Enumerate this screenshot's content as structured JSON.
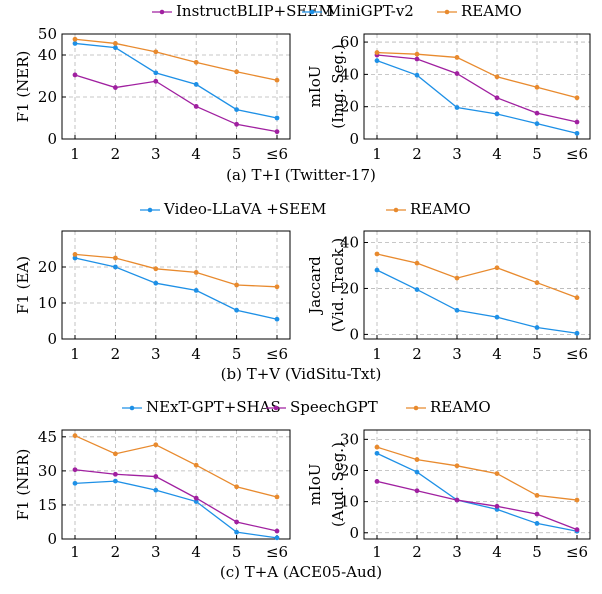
{
  "colors": {
    "purple": "#a020a0",
    "blue": "#1e90e6",
    "orange": "#e88a2e",
    "grid": "#b5b5b5"
  },
  "rows": [
    {
      "caption": "(a) T+I (Twitter-17)",
      "legend": [
        {
          "name": "InstructBLIP+SEEM",
          "color": "#a020a0"
        },
        {
          "name": "MiniGPT-v2",
          "color": "#1e90e6"
        },
        {
          "name": "REAMO",
          "color": "#e88a2e"
        }
      ]
    },
    {
      "caption": "(b) T+V (VidSitu-Txt)",
      "legend": [
        {
          "name": "Video-LLaVA +SEEM",
          "color": "#1e90e6"
        },
        {
          "name": "REAMO",
          "color": "#e88a2e"
        }
      ]
    },
    {
      "caption": "(c) T+A (ACE05-Aud)",
      "legend": [
        {
          "name": "NExT-GPT+SHAS",
          "color": "#1e90e6"
        },
        {
          "name": "SpeechGPT",
          "color": "#a020a0"
        },
        {
          "name": "REAMO",
          "color": "#e88a2e"
        }
      ]
    }
  ],
  "chart_data": [
    {
      "type": "line",
      "ylabel": [
        "F1 (NER)"
      ],
      "x": [
        "1",
        "2",
        "3",
        "4",
        "5",
        "≤6"
      ],
      "ylim": [
        0,
        50
      ],
      "yticks": [
        0,
        20,
        40,
        50
      ],
      "grid": true,
      "series": [
        {
          "name": "InstructBLIP+SEEM",
          "color": "#a020a0",
          "values": [
            30.5,
            24.5,
            27.5,
            15.5,
            7,
            3.5
          ]
        },
        {
          "name": "MiniGPT-v2",
          "color": "#1e90e6",
          "values": [
            45.5,
            43.5,
            31.5,
            26,
            14,
            10
          ]
        },
        {
          "name": "REAMO",
          "color": "#e88a2e",
          "values": [
            47.5,
            45.5,
            41.5,
            36.5,
            32,
            28
          ]
        }
      ]
    },
    {
      "type": "line",
      "ylabel": [
        "mIoU",
        "(Img. Seg.)"
      ],
      "x": [
        "1",
        "2",
        "3",
        "4",
        "5",
        "≤6"
      ],
      "ylim": [
        0,
        65
      ],
      "yticks": [
        0,
        20,
        40,
        60
      ],
      "grid": true,
      "series": [
        {
          "name": "InstructBLIP+SEEM",
          "color": "#a020a0",
          "values": [
            52,
            49.5,
            40.5,
            25.5,
            16,
            10.5
          ]
        },
        {
          "name": "MiniGPT-v2",
          "color": "#1e90e6",
          "values": [
            48.5,
            39.5,
            19.5,
            15.5,
            9.5,
            3.5
          ]
        },
        {
          "name": "REAMO",
          "color": "#e88a2e",
          "values": [
            53.5,
            52.5,
            50.5,
            38.5,
            32,
            25.5
          ]
        }
      ]
    },
    {
      "type": "line",
      "ylabel": [
        "F1 (EA)"
      ],
      "x": [
        "1",
        "2",
        "3",
        "4",
        "5",
        "≤6"
      ],
      "ylim": [
        0,
        30
      ],
      "yticks": [
        0,
        10,
        20
      ],
      "grid": true,
      "series": [
        {
          "name": "Video-LLaVA +SEEM",
          "color": "#1e90e6",
          "values": [
            22.5,
            20,
            15.5,
            13.5,
            8,
            5.5
          ]
        },
        {
          "name": "REAMO",
          "color": "#e88a2e",
          "values": [
            23.5,
            22.5,
            19.5,
            18.5,
            15,
            14.5
          ]
        }
      ]
    },
    {
      "type": "line",
      "ylabel": [
        "Jaccard",
        "(Vid. Track.)"
      ],
      "x": [
        "1",
        "2",
        "3",
        "4",
        "5",
        "≤6"
      ],
      "ylim": [
        -2,
        45
      ],
      "yticks": [
        0,
        20,
        40
      ],
      "grid": true,
      "series": [
        {
          "name": "Video-LLaVA +SEEM",
          "color": "#1e90e6",
          "values": [
            28,
            19.5,
            10.5,
            7.5,
            3,
            0.5
          ]
        },
        {
          "name": "REAMO",
          "color": "#e88a2e",
          "values": [
            35,
            31,
            24.5,
            29,
            22.5,
            16
          ]
        }
      ]
    },
    {
      "type": "line",
      "ylabel": [
        "F1 (NER)"
      ],
      "x": [
        "1",
        "2",
        "3",
        "4",
        "5",
        "≤6"
      ],
      "ylim": [
        0,
        48
      ],
      "yticks": [
        0,
        15,
        30,
        45
      ],
      "grid": true,
      "series": [
        {
          "name": "NExT-GPT+SHAS",
          "color": "#1e90e6",
          "values": [
            24.5,
            25.5,
            21.5,
            16.5,
            3,
            0.5
          ]
        },
        {
          "name": "SpeechGPT",
          "color": "#a020a0",
          "values": [
            30.5,
            28.5,
            27.5,
            18,
            7.5,
            3.5
          ]
        },
        {
          "name": "REAMO",
          "color": "#e88a2e",
          "values": [
            45.5,
            37.5,
            41.5,
            32.5,
            23,
            18.5
          ]
        }
      ]
    },
    {
      "type": "line",
      "ylabel": [
        "mIoU",
        "(Aud. Seg.)"
      ],
      "x": [
        "1",
        "2",
        "3",
        "4",
        "5",
        "≤6"
      ],
      "ylim": [
        -2,
        33
      ],
      "yticks": [
        0,
        10,
        20,
        30
      ],
      "grid": true,
      "series": [
        {
          "name": "NExT-GPT+SHAS",
          "color": "#1e90e6",
          "values": [
            25.5,
            19.5,
            10.5,
            7.5,
            3,
            0.5
          ]
        },
        {
          "name": "SpeechGPT",
          "color": "#a020a0",
          "values": [
            16.5,
            13.5,
            10.5,
            8.5,
            6,
            1
          ]
        },
        {
          "name": "REAMO",
          "color": "#e88a2e",
          "values": [
            27.5,
            23.5,
            21.5,
            19,
            12,
            10.5
          ]
        }
      ]
    }
  ]
}
